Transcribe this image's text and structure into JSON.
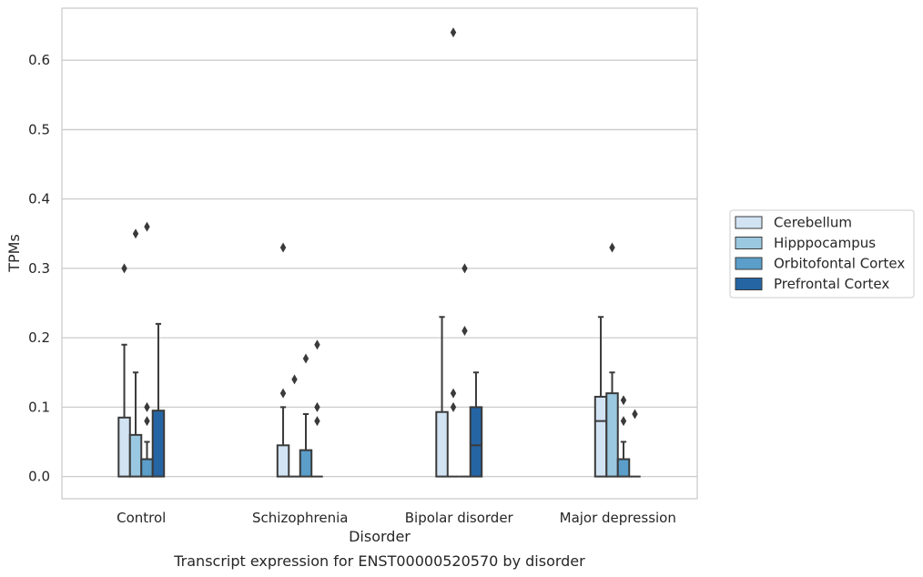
{
  "chart_data": {
    "type": "box",
    "caption": "Transcript expression for ENST00000520570 by disorder",
    "xlabel": "Disorder",
    "ylabel": "TPMs",
    "ylim": [
      -0.032,
      0.675
    ],
    "yticks": [
      0.0,
      0.1,
      0.2,
      0.3,
      0.4,
      0.5,
      0.6
    ],
    "ytick_labels": [
      "0.0",
      "0.1",
      "0.2",
      "0.3",
      "0.4",
      "0.5",
      "0.6"
    ],
    "grid": "horizontal",
    "legend_placement": "right",
    "categories": [
      "Control",
      "Schizophrenia",
      "Bipolar disorder",
      "Major depression"
    ],
    "series": [
      {
        "name": "Cerebellum",
        "color": "#d2e3f3",
        "boxes": [
          {
            "q1": 0.0,
            "median": 0.0,
            "q3": 0.085,
            "whisker_low": 0.0,
            "whisker_high": 0.19,
            "outliers": [
              0.3
            ]
          },
          {
            "q1": 0.0,
            "median": 0.0,
            "q3": 0.045,
            "whisker_low": 0.0,
            "whisker_high": 0.1,
            "outliers": [
              0.12,
              0.33
            ]
          },
          {
            "q1": 0.0,
            "median": 0.0,
            "q3": 0.093,
            "whisker_low": 0.0,
            "whisker_high": 0.23,
            "outliers": []
          },
          {
            "q1": 0.0,
            "median": 0.08,
            "q3": 0.115,
            "whisker_low": 0.0,
            "whisker_high": 0.23,
            "outliers": []
          }
        ]
      },
      {
        "name": "Hipppocampus",
        "color": "#9ac8e0",
        "boxes": [
          {
            "q1": 0.0,
            "median": 0.0,
            "q3": 0.06,
            "whisker_low": 0.0,
            "whisker_high": 0.15,
            "outliers": [
              0.35
            ]
          },
          {
            "q1": 0.0,
            "median": 0.0,
            "q3": 0.0,
            "whisker_low": 0.0,
            "whisker_high": 0.0,
            "outliers": [
              0.14
            ]
          },
          {
            "q1": 0.0,
            "median": 0.0,
            "q3": 0.0,
            "whisker_low": 0.0,
            "whisker_high": 0.0,
            "outliers": [
              0.1,
              0.12,
              0.64
            ]
          },
          {
            "q1": 0.0,
            "median": 0.0,
            "q3": 0.12,
            "whisker_low": 0.0,
            "whisker_high": 0.15,
            "outliers": [
              0.33
            ]
          }
        ]
      },
      {
        "name": "Orbitofontal Cortex",
        "color": "#5a9ec9",
        "boxes": [
          {
            "q1": 0.0,
            "median": 0.0,
            "q3": 0.025,
            "whisker_low": 0.0,
            "whisker_high": 0.05,
            "outliers": [
              0.08,
              0.1,
              0.36
            ]
          },
          {
            "q1": 0.0,
            "median": 0.0,
            "q3": 0.038,
            "whisker_low": 0.0,
            "whisker_high": 0.09,
            "outliers": [
              0.17
            ]
          },
          {
            "q1": 0.0,
            "median": 0.0,
            "q3": 0.0,
            "whisker_low": 0.0,
            "whisker_high": 0.0,
            "outliers": [
              0.21,
              0.3
            ]
          },
          {
            "q1": 0.0,
            "median": 0.0,
            "q3": 0.025,
            "whisker_low": 0.0,
            "whisker_high": 0.05,
            "outliers": [
              0.08,
              0.11
            ]
          }
        ]
      },
      {
        "name": "Prefrontal Cortex",
        "color": "#2565a4",
        "boxes": [
          {
            "q1": 0.0,
            "median": 0.0,
            "q3": 0.095,
            "whisker_low": 0.0,
            "whisker_high": 0.22,
            "outliers": []
          },
          {
            "q1": 0.0,
            "median": 0.0,
            "q3": 0.0,
            "whisker_low": 0.0,
            "whisker_high": 0.0,
            "outliers": [
              0.08,
              0.1,
              0.19
            ]
          },
          {
            "q1": 0.0,
            "median": 0.045,
            "q3": 0.1,
            "whisker_low": 0.0,
            "whisker_high": 0.15,
            "outliers": []
          },
          {
            "q1": 0.0,
            "median": 0.0,
            "q3": 0.0,
            "whisker_low": 0.0,
            "whisker_high": 0.0,
            "outliers": [
              0.09
            ]
          }
        ]
      }
    ]
  }
}
